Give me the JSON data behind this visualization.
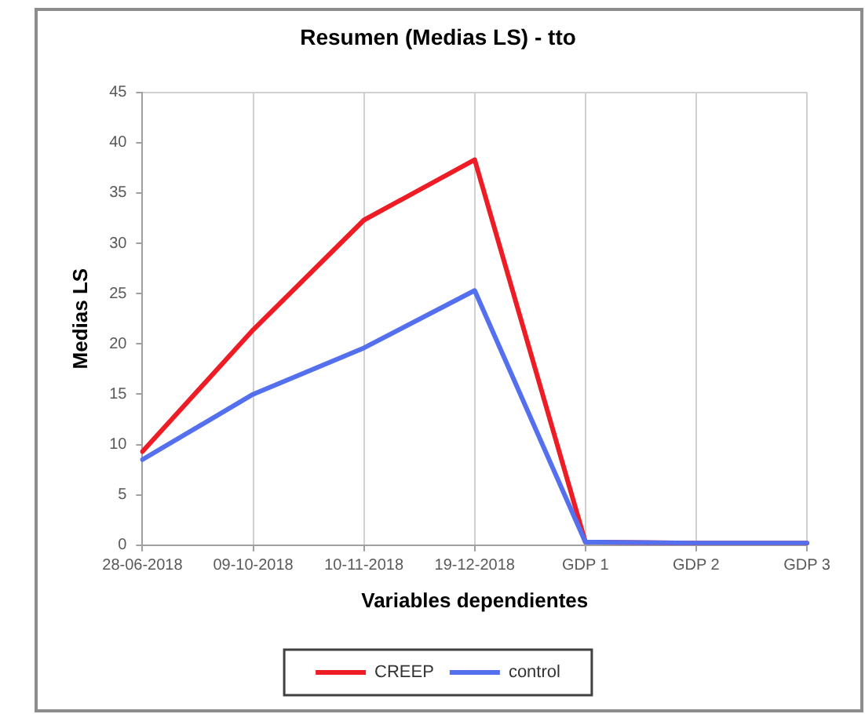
{
  "chart_data": {
    "type": "line",
    "title": "Resumen (Medias LS) - tto",
    "xlabel": "Variables dependientes",
    "ylabel": "Medias LS",
    "categories": [
      "28-06-2018",
      "09-10-2018",
      "10-11-2018",
      "19-12-2018",
      "GDP 1",
      "GDP 2",
      "GDP 3"
    ],
    "series": [
      {
        "name": "CREEP",
        "color": "#ee1c25",
        "values": [
          9.3,
          21.4,
          32.3,
          38.3,
          0.3,
          0.2,
          0.2
        ]
      },
      {
        "name": "control",
        "color": "#5570ee",
        "values": [
          8.5,
          15.0,
          19.6,
          25.3,
          0.3,
          0.2,
          0.2
        ]
      }
    ],
    "ylim": [
      0,
      45
    ],
    "yticks": [
      0,
      5,
      10,
      15,
      20,
      25,
      30,
      35,
      40,
      45
    ],
    "grid": "x",
    "legend": "bottom",
    "marker": "none",
    "line_style": "solid"
  }
}
